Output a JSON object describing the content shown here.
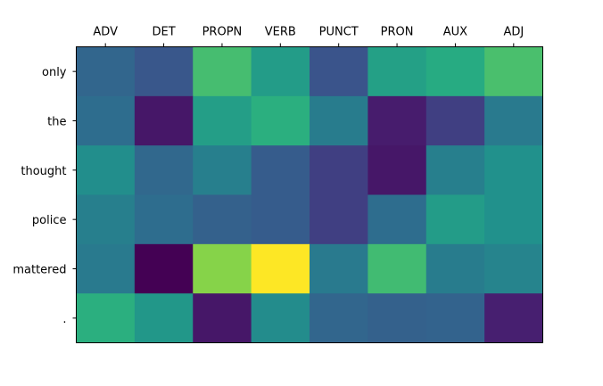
{
  "chart_data": {
    "type": "heatmap",
    "title": "",
    "xlabel": "",
    "ylabel": "",
    "x_categories": [
      "ADV",
      "DET",
      "PROPN",
      "VERB",
      "PUNCT",
      "PRON",
      "AUX",
      "ADJ"
    ],
    "y_categories": [
      "only",
      "the",
      "thought",
      "police",
      "mattered",
      "."
    ],
    "x_axis_position": "top",
    "colormap": "viridis",
    "colorbar": false,
    "grid": false,
    "value_range": [
      0,
      1
    ],
    "values": [
      [
        0.33,
        0.27,
        0.7,
        0.55,
        0.26,
        0.57,
        0.62,
        0.71
      ],
      [
        0.36,
        0.08,
        0.56,
        0.64,
        0.42,
        0.1,
        0.2,
        0.41
      ],
      [
        0.49,
        0.34,
        0.43,
        0.29,
        0.2,
        0.08,
        0.43,
        0.5
      ],
      [
        0.43,
        0.36,
        0.31,
        0.29,
        0.2,
        0.36,
        0.55,
        0.5
      ],
      [
        0.41,
        0.0,
        0.82,
        1.0,
        0.41,
        0.69,
        0.42,
        0.45
      ],
      [
        0.64,
        0.53,
        0.08,
        0.48,
        0.33,
        0.31,
        0.32,
        0.11
      ]
    ]
  }
}
